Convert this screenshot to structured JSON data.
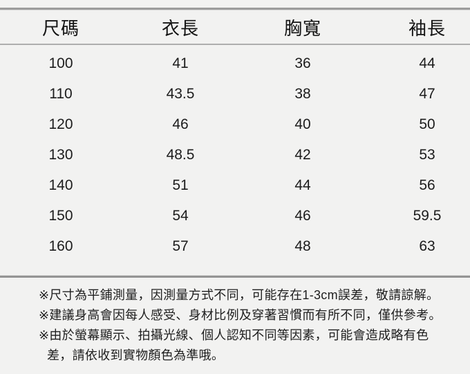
{
  "colors": {
    "background": "#f2f2f1",
    "text": "#1d1d1d",
    "top_rule": "#9c9c9c",
    "header_rule": "#aeaeae",
    "bottom_rule": "#949494"
  },
  "size_chart": {
    "columns": [
      "尺碼",
      "衣長",
      "胸寬",
      "袖長"
    ],
    "rows": [
      [
        "100",
        "41",
        "36",
        "44"
      ],
      [
        "110",
        "43.5",
        "38",
        "47"
      ],
      [
        "120",
        "46",
        "40",
        "50"
      ],
      [
        "130",
        "48.5",
        "42",
        "53"
      ],
      [
        "140",
        "51",
        "44",
        "56"
      ],
      [
        "150",
        "54",
        "46",
        "59.5"
      ],
      [
        "160",
        "57",
        "48",
        "63"
      ]
    ]
  },
  "notes": {
    "note1": "※尺寸為平鋪測量，因測量方式不同，可能存在1-3cm誤差，敬請諒解。",
    "note2": "※建議身高會因每人感受、身材比例及穿著習慣而有所不同，僅供參考。",
    "note3_line1": "※由於螢幕顯示、拍攝光線、個人認知不同等因素，可能會造成略有色",
    "note3_line2": "差，請依收到實物顏色為準哦。"
  }
}
